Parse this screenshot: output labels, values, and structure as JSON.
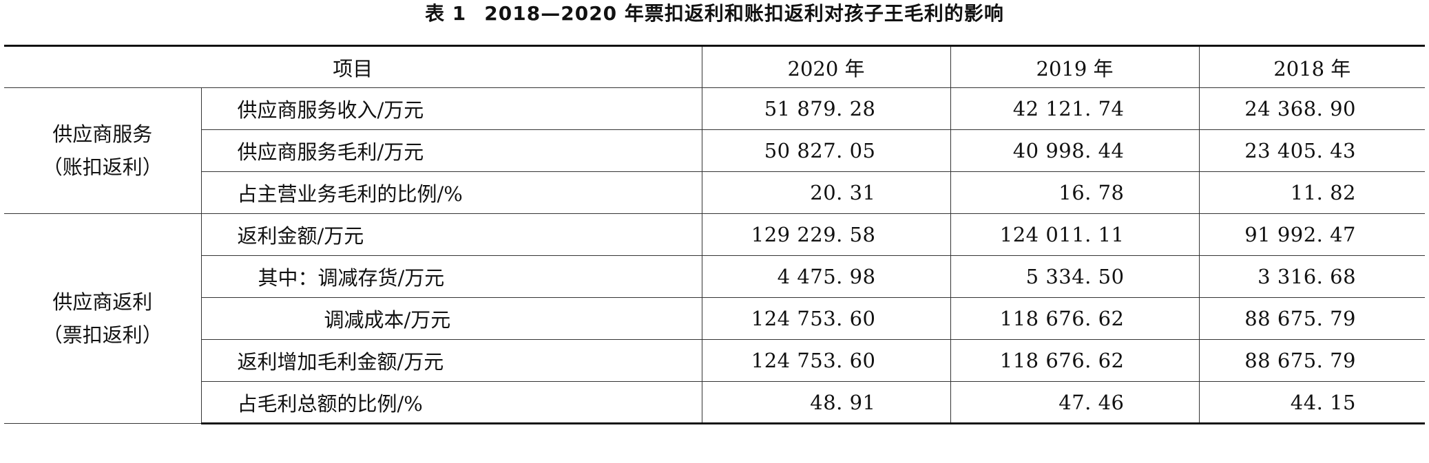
{
  "title": {
    "number": "表 1",
    "text": "2018—2020 年票扣返利和账扣返利对孩子王毛利的影响"
  },
  "table": {
    "headers": {
      "item": "项目",
      "y2020": "2020 年",
      "y2019": "2019 年",
      "y2018": "2018 年"
    },
    "groups": [
      {
        "label_line1": "供应商服务",
        "label_line2": "（账扣返利）",
        "rows": [
          {
            "item": "供应商服务收入/万元",
            "v2020": "51 879. 28",
            "v2019": "42 121. 74",
            "v2018": "24 368. 90"
          },
          {
            "item": "供应商服务毛利/万元",
            "v2020": "50 827. 05",
            "v2019": "40 998. 44",
            "v2018": "23 405. 43"
          },
          {
            "item": "占主营业务毛利的比例/%",
            "v2020": "20. 31",
            "v2019": "16. 78",
            "v2018": "11. 82"
          }
        ]
      },
      {
        "label_line1": "供应商返利",
        "label_line2": "（票扣返利）",
        "rows": [
          {
            "item": "返利金额/万元",
            "v2020": "129 229. 58",
            "v2019": "124 011. 11",
            "v2018": "91 992. 47"
          },
          {
            "item": "其中：调减存货/万元",
            "v2020": "4 475. 98",
            "v2019": "5 334. 50",
            "v2018": "3 316. 68"
          },
          {
            "item": "调减成本/万元",
            "v2020": "124 753. 60",
            "v2019": "118 676. 62",
            "v2018": "88 675. 79"
          },
          {
            "item": "返利增加毛利金额/万元",
            "v2020": "124 753. 60",
            "v2019": "118 676. 62",
            "v2018": "88 675. 79"
          },
          {
            "item": "占毛利总额的比例/%",
            "v2020": "48. 91",
            "v2019": "47. 46",
            "v2018": "44. 15"
          }
        ]
      }
    ]
  }
}
